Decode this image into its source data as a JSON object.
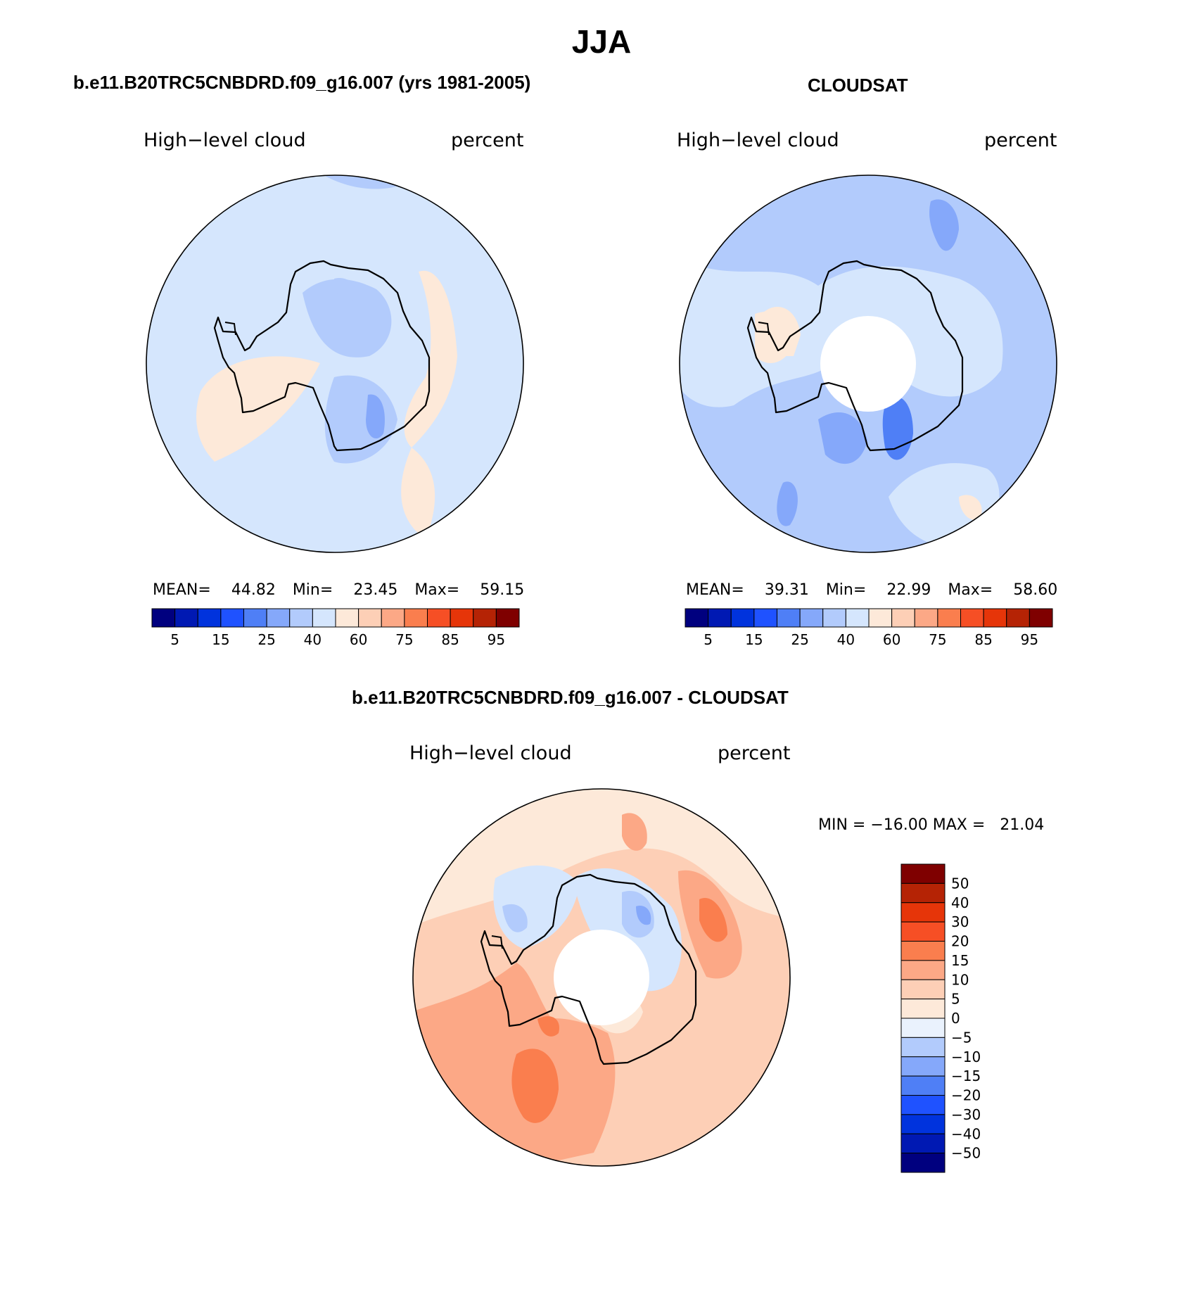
{
  "page": {
    "title": "JJA"
  },
  "panels": [
    {
      "id": "model",
      "title": "b.e11.B20TRC5CNBDRD.f09_g16.007 (yrs 1981-2005)",
      "left_label": "High−level cloud",
      "right_label": "percent",
      "stats": {
        "mean_label": "MEAN=",
        "mean": "44.82",
        "min_label": "Min=",
        "min": "23.45",
        "max_label": "Max=",
        "max": "59.15"
      },
      "colorbar": {
        "colors": [
          "#00007f",
          "#0019b3",
          "#0033dd",
          "#1f52ff",
          "#4f7ff6",
          "#85a8fa",
          "#b2cbfc",
          "#d5e6fd",
          "#fde9d9",
          "#fdcfb6",
          "#fca886",
          "#fa7e4e",
          "#f64f25",
          "#e63509",
          "#b52305",
          "#7f0000"
        ],
        "labels": [
          "5",
          "15",
          "25",
          "40",
          "60",
          "75",
          "85",
          "95"
        ]
      }
    },
    {
      "id": "obs",
      "title": "CLOUDSAT",
      "left_label": "High−level cloud",
      "right_label": "percent",
      "stats": {
        "mean_label": "MEAN=",
        "mean": "39.31",
        "min_label": "Min=",
        "min": "22.99",
        "max_label": "Max=",
        "max": "58.60"
      },
      "colorbar": {
        "colors": [
          "#00007f",
          "#0019b3",
          "#0033dd",
          "#1f52ff",
          "#4f7ff6",
          "#85a8fa",
          "#b2cbfc",
          "#d5e6fd",
          "#fde9d9",
          "#fdcfb6",
          "#fca886",
          "#fa7e4e",
          "#f64f25",
          "#e63509",
          "#b52305",
          "#7f0000"
        ],
        "labels": [
          "5",
          "15",
          "25",
          "40",
          "60",
          "75",
          "85",
          "95"
        ]
      }
    },
    {
      "id": "diff",
      "title": "b.e11.B20TRC5CNBDRD.f09_g16.007 - CLOUDSAT",
      "left_label": "High−level cloud",
      "right_label": "percent",
      "stats_text": "MIN = −16.00 MAX =   21.04",
      "colorbar": {
        "colors_top_to_bottom": [
          "#7f0000",
          "#b52305",
          "#e63509",
          "#f64f25",
          "#fa7e4e",
          "#fca886",
          "#fdcfb6",
          "#fde9d9",
          "#eaf2fd",
          "#b2cbfc",
          "#85a8fa",
          "#4f7ff6",
          "#1f52ff",
          "#0033dd",
          "#0019b3",
          "#00007f"
        ],
        "labels": [
          "50",
          "40",
          "30",
          "20",
          "15",
          "10",
          "5",
          "0",
          "−5",
          "−10",
          "−15",
          "−20",
          "−30",
          "−40",
          "−50"
        ]
      }
    }
  ]
}
